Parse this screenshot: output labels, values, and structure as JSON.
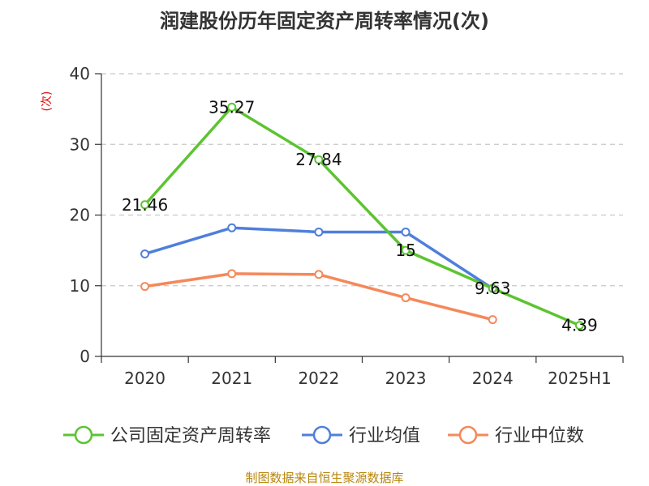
{
  "chart_data": {
    "type": "line",
    "title": "润建股份历年固定资产周转率情况(次)",
    "ylabel": "(次)",
    "xlabel": "",
    "categories": [
      "2020",
      "2021",
      "2022",
      "2023",
      "2024",
      "2025H1"
    ],
    "ylim": [
      0,
      40
    ],
    "yticks": [
      0,
      10,
      20,
      30,
      40
    ],
    "grid": true,
    "legend_position": "bottom",
    "series": [
      {
        "name": "公司固定资产周转率",
        "values": [
          21.46,
          35.27,
          27.84,
          15,
          9.63,
          4.39
        ],
        "color": "#5cc431",
        "show_labels": true
      },
      {
        "name": "行业均值",
        "values": [
          14.5,
          18.2,
          17.6,
          17.6,
          9.6,
          null
        ],
        "color": "#4f7fdb",
        "show_labels": false
      },
      {
        "name": "行业中位数",
        "values": [
          9.9,
          11.7,
          11.6,
          8.3,
          5.2,
          null
        ],
        "color": "#f5885a",
        "show_labels": false
      }
    ],
    "data_labels": [
      "21.46",
      "35.27",
      "27.84",
      "15",
      "9.63",
      "4.39"
    ],
    "source": "制图数据来自恒生聚源数据库"
  }
}
